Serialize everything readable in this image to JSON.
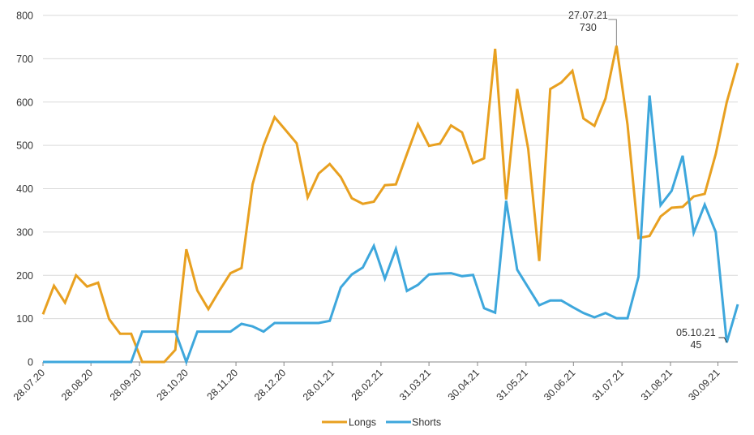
{
  "chart_data": {
    "type": "line",
    "title": "",
    "xlabel": "",
    "ylabel": "",
    "ylim": [
      0,
      800
    ],
    "yticks": [
      0,
      100,
      200,
      300,
      400,
      500,
      600,
      700,
      800
    ],
    "grid": true,
    "legend_position": "bottom",
    "x_tick_labels": [
      "28.07.20",
      "28.08.20",
      "28.09.20",
      "28.10.20",
      "28.11.20",
      "28.12.20",
      "28.01.21",
      "28.02.21",
      "31.03.21",
      "30.04.21",
      "31.05.21",
      "30.06.21",
      "31.07.21",
      "31.08.21",
      "30.09.21"
    ],
    "x_tick_index": [
      0,
      4.35,
      8.75,
      13.0,
      17.5,
      21.85,
      26.25,
      30.65,
      35.0,
      39.4,
      43.8,
      48.1,
      52.5,
      56.9,
      61.2
    ],
    "point_count": 64,
    "series": [
      {
        "name": "Longs",
        "color": "#E8A020",
        "values": [
          110,
          176,
          137,
          200,
          174,
          183,
          99,
          65,
          65,
          0,
          0,
          0,
          28,
          260,
          165,
          122,
          165,
          205,
          217,
          410,
          500,
          565,
          535,
          505,
          380,
          435,
          457,
          427,
          378,
          365,
          370,
          408,
          410,
          480,
          549,
          499,
          504,
          546,
          530,
          459,
          470,
          723,
          375,
          630,
          492,
          233,
          630,
          645,
          672,
          562,
          545,
          608,
          730,
          548,
          286,
          291,
          336,
          356,
          358,
          382,
          388,
          480,
          600,
          690
        ]
      },
      {
        "name": "Shorts",
        "color": "#3EA7DC",
        "values": [
          0,
          0,
          0,
          0,
          0,
          0,
          0,
          0,
          0,
          70,
          70,
          70,
          70,
          0,
          70,
          70,
          70,
          70,
          88,
          82,
          70,
          90,
          90,
          90,
          90,
          90,
          95,
          172,
          202,
          218,
          268,
          192,
          261,
          164,
          178,
          202,
          204,
          205,
          198,
          201,
          124,
          114,
          372,
          213,
          172,
          131,
          142,
          142,
          127,
          113,
          103,
          113,
          101,
          101,
          197,
          615,
          362,
          395,
          476,
          298,
          363,
          300,
          45,
          133
        ]
      }
    ],
    "annotations": [
      {
        "series": "Longs",
        "index": 52,
        "date": "27.07.21",
        "value": "730"
      },
      {
        "series": "Shorts",
        "index": 62,
        "date": "05.10.21",
        "value": "45"
      }
    ]
  },
  "legend": {
    "items": [
      {
        "label": "Longs",
        "color": "#E8A020"
      },
      {
        "label": "Shorts",
        "color": "#3EA7DC"
      }
    ]
  },
  "colors": {
    "grid": "#d9d9d9",
    "axis": "#888888",
    "text": "#333333"
  }
}
